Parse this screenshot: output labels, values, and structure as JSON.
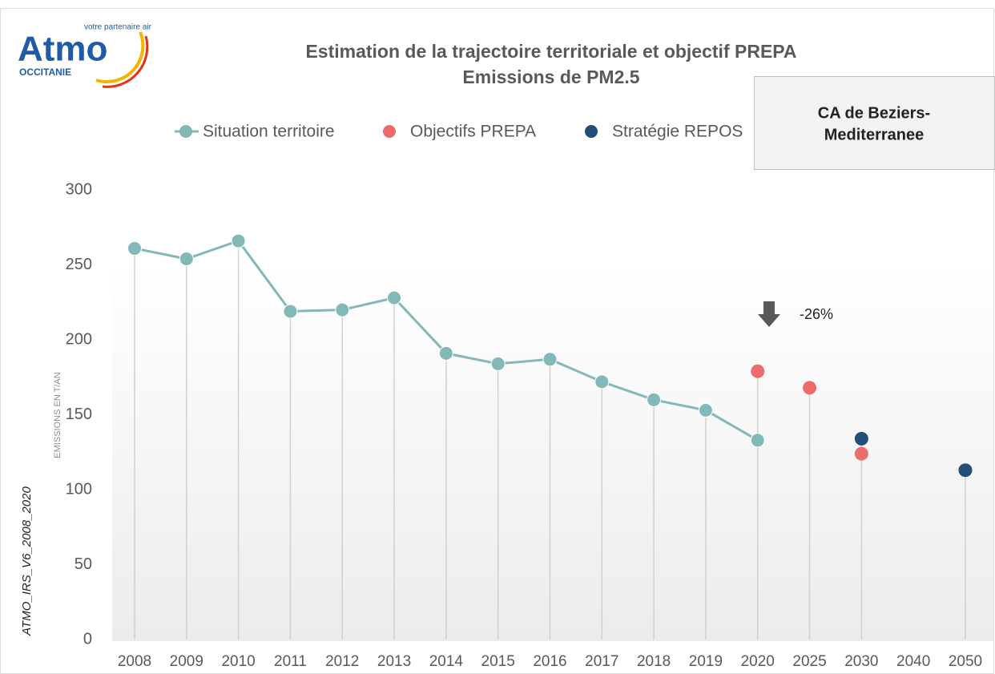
{
  "logo": {
    "name": "Atmo",
    "tagline": "votre partenaire air",
    "region": "OCCITANIE"
  },
  "chart_data": {
    "type": "line",
    "title": "Estimation de la trajectoire territoriale et objectif PREPA",
    "subtitle": "Emissions de PM2.5",
    "box_label": [
      "CA de Beziers-",
      "Mediterranee"
    ],
    "ylabel": "EMISSIONS  EN T/AN",
    "source": "ATMO_IRS_V6_2008_2020",
    "annotation": "-26%",
    "categories": [
      "2008",
      "2009",
      "2010",
      "2011",
      "2012",
      "2013",
      "2014",
      "2015",
      "2016",
      "2017",
      "2018",
      "2019",
      "2020",
      "2025",
      "2030",
      "2040",
      "2050"
    ],
    "series": [
      {
        "name": "Situation territoire",
        "color": "#82b8b8",
        "style": "line",
        "values": [
          261,
          254,
          266,
          219,
          220,
          228,
          191,
          184,
          187,
          172,
          160,
          153,
          133,
          null,
          null,
          null,
          null
        ]
      },
      {
        "name": "Objectifs PREPA",
        "color": "#ec6b6b",
        "style": "points",
        "values": [
          null,
          null,
          null,
          null,
          null,
          null,
          null,
          null,
          null,
          null,
          null,
          null,
          179,
          168,
          124,
          null,
          null
        ]
      },
      {
        "name": "Stratégie REPOS",
        "color": "#1f4e79",
        "style": "points",
        "values": [
          null,
          null,
          null,
          null,
          null,
          null,
          null,
          null,
          null,
          null,
          null,
          null,
          null,
          null,
          134,
          null,
          113
        ]
      }
    ],
    "ylim": [
      0,
      300
    ],
    "yticks": [
      0,
      50,
      100,
      150,
      200,
      250,
      300
    ]
  }
}
